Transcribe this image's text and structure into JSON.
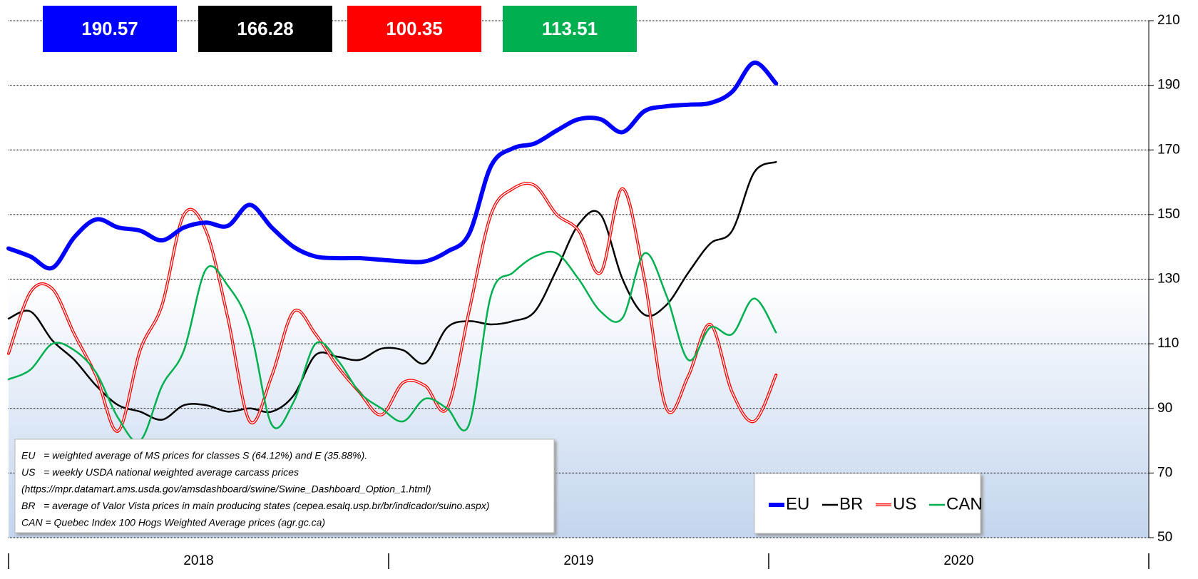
{
  "chart_data": {
    "type": "line",
    "x": [
      0,
      3,
      6,
      9,
      12,
      15,
      18,
      21,
      24,
      27,
      30,
      33,
      36,
      39,
      42,
      45,
      48,
      51,
      54,
      57,
      60,
      63,
      66,
      69,
      72,
      75,
      78,
      81,
      84,
      87,
      90,
      93,
      96,
      99,
      102,
      105
    ],
    "xlim": [
      0,
      156
    ],
    "xticks": [
      {
        "value": 26,
        "label": "2018"
      },
      {
        "value": 78,
        "label": "2019"
      },
      {
        "value": 130,
        "label": "2020"
      }
    ],
    "year_bounds": [
      0,
      52,
      104,
      156
    ],
    "ylim": [
      50,
      210
    ],
    "yticks": [
      50,
      70,
      90,
      110,
      130,
      150,
      170,
      190,
      210
    ],
    "grid": true,
    "legend": "lower right",
    "series": [
      {
        "name": "EU",
        "color": "#0000ff",
        "width": 6,
        "values": [
          139.5,
          137,
          133.5,
          143,
          148.5,
          146,
          145,
          142,
          146,
          147.5,
          146.5,
          153,
          146,
          140,
          137,
          136.5,
          136.5,
          136,
          135.5,
          135.5,
          138.5,
          144,
          165,
          170.5,
          172,
          176,
          179.5,
          179.5,
          175.5,
          182,
          183.5,
          184,
          184.5,
          188,
          197,
          190.57
        ]
      },
      {
        "name": "BR",
        "color": "#000000",
        "width": 2.5,
        "values": [
          117.8,
          120,
          111,
          105,
          97,
          91,
          89,
          86.5,
          91,
          91,
          89,
          90,
          89,
          94,
          106.5,
          106,
          105,
          108.5,
          108,
          104,
          115,
          117,
          116,
          117,
          120,
          133,
          147,
          150,
          130,
          119,
          122,
          132,
          141,
          145,
          163,
          166.28
        ]
      },
      {
        "name": "US",
        "color": "#ff0000",
        "width": 4,
        "line_style": "double",
        "values": [
          107,
          126,
          127,
          113,
          100,
          83,
          108,
          122,
          150,
          145,
          118,
          86,
          100,
          120,
          113,
          103,
          95,
          88,
          98,
          97,
          90,
          120,
          150,
          158,
          159,
          150,
          145,
          132,
          158,
          130,
          90,
          100,
          116,
          95,
          86,
          100.35
        ]
      },
      {
        "name": "CAN",
        "color": "#00b050",
        "width": 2.5,
        "values": [
          99,
          102,
          110,
          108,
          101,
          87,
          80,
          97,
          108,
          133,
          128,
          115,
          85,
          92,
          110,
          105,
          95,
          90,
          86,
          93,
          90,
          85,
          125,
          132,
          137,
          138,
          130,
          120,
          118,
          138,
          125,
          105,
          115,
          113,
          124,
          113.51
        ]
      }
    ],
    "notes": [
      "EU   = weighted average of MS prices for classes S (64.12%) and E (35.88%).",
      "US   = weekly USDA national weighted average carcass prices",
      "(https://mpr.datamart.ams.usda.gov/amsdashboard/swine/Swine_Dashboard_Option_1.html)",
      "BR   = average of Valor Vista prices in main producing states (cepea.esalq.usp.br/br/indicador/suino.aspx)",
      "CAN = Quebec Index 100 Hogs Weighted Average prices (agr.gc.ca)"
    ]
  }
}
